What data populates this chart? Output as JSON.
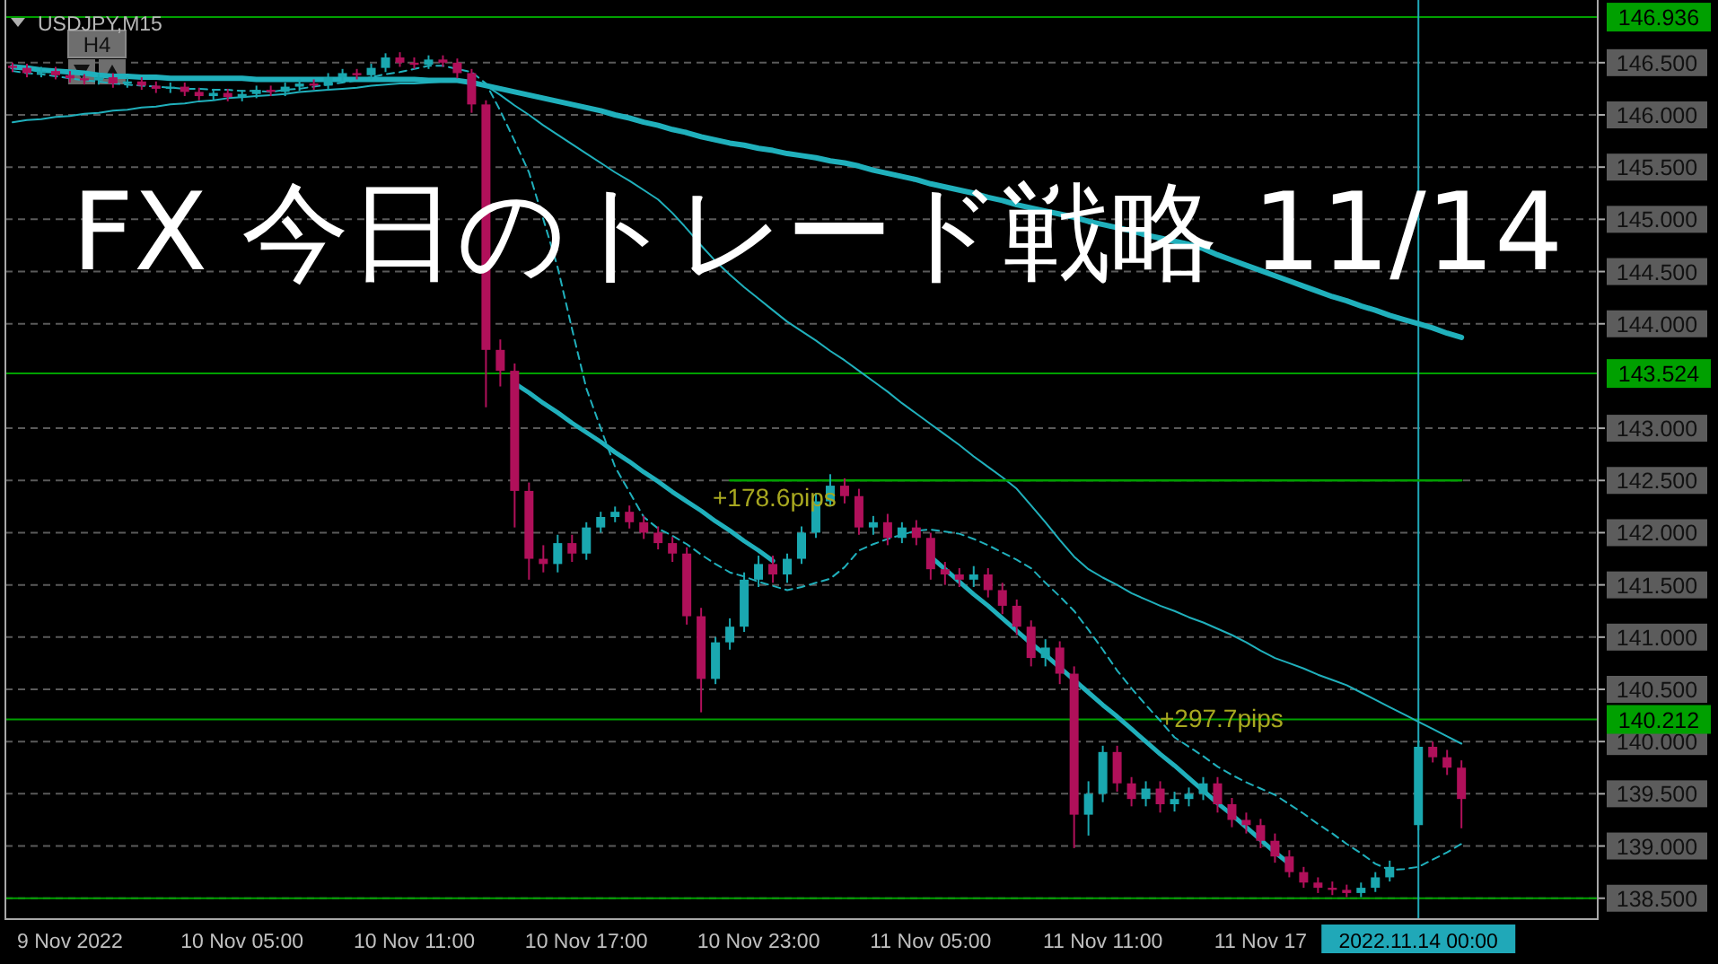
{
  "chart_data": {
    "type": "candlestick",
    "title": "FX 今日のトレード戦略 11/14",
    "subtitle": "USDJPY,M15",
    "annotations": [
      "H4",
      "+178.6pips",
      "+297.7pips"
    ],
    "categories": [
      null,
      null,
      null,
      null,
      "9 Nov 2022",
      null,
      null,
      null,
      null,
      null,
      null,
      null,
      null,
      null,
      null,
      null,
      "10 Nov 05:00",
      null,
      null,
      null,
      null,
      null,
      null,
      null,
      null,
      null,
      null,
      null,
      "10 Nov 11:00",
      null,
      null,
      null,
      null,
      null,
      null,
      null,
      null,
      null,
      null,
      null,
      "10 Nov 17:00",
      null,
      null,
      null,
      null,
      null,
      null,
      null,
      null,
      null,
      null,
      null,
      "10 Nov 23:00",
      null,
      null,
      null,
      null,
      null,
      null,
      null,
      null,
      null,
      null,
      null,
      "11 Nov 05:00",
      null,
      null,
      null,
      null,
      null,
      null,
      null,
      null,
      null,
      null,
      null,
      "11 Nov 11:00",
      null,
      null,
      null,
      null,
      null,
      null,
      null,
      null,
      null,
      null,
      "11 Nov 17",
      null,
      null,
      null,
      null,
      null,
      null,
      null,
      null,
      null,
      null,
      "2022.11.14 00:00",
      null,
      null,
      null,
      null,
      null,
      null,
      null,
      null,
      null,
      null,
      null,
      null
    ],
    "ylim": [
      138.3,
      147.1
    ],
    "yticks": [
      {
        "value": 138.5,
        "label": "138.500"
      },
      {
        "value": 139,
        "label": "139.000"
      },
      {
        "value": 139.5,
        "label": "139.500"
      },
      {
        "value": 140,
        "label": "140.000"
      },
      {
        "value": 140.5,
        "label": "140.500"
      },
      {
        "value": 141,
        "label": "141.000"
      },
      {
        "value": 141.5,
        "label": "141.500"
      },
      {
        "value": 142,
        "label": "142.000"
      },
      {
        "value": 142.5,
        "label": "142.500"
      },
      {
        "value": 143,
        "label": "143.000"
      },
      {
        "value": 144,
        "label": "144.000"
      },
      {
        "value": 144.5,
        "label": "144.500"
      },
      {
        "value": 145,
        "label": "145.000"
      },
      {
        "value": 145.5,
        "label": "145.500"
      },
      {
        "value": 146,
        "label": "146.000"
      },
      {
        "value": 146.5,
        "label": "146.500"
      }
    ],
    "grid": "y",
    "ref_lines": [
      {
        "axis": "y",
        "value": 146.936,
        "label": "146.936",
        "color": "#00a000"
      },
      {
        "axis": "y",
        "value": 143.524,
        "label": "143.524",
        "color": "#00a000"
      },
      {
        "axis": "y",
        "value": 140.212,
        "label": "140.212",
        "color": "#00a000"
      },
      {
        "axis": "y",
        "value": 138.5,
        "color": "#00a000"
      },
      {
        "axis": "x",
        "value": "2022.11.14 00:00",
        "color": "#20a8b8"
      }
    ],
    "series": [
      {
        "type": "line",
        "color": "#20b0bc",
        "values": [
          146.46,
          146.45,
          146.43,
          146.42,
          146.41,
          146.4,
          146.38,
          146.37,
          146.37,
          146.36,
          146.36,
          146.35,
          146.35,
          146.35,
          146.35,
          146.35,
          146.35,
          146.34,
          146.34,
          146.34,
          146.34,
          146.34,
          146.34,
          146.34,
          146.34,
          146.34,
          146.34,
          146.34,
          146.34,
          146.33,
          146.33,
          146.33,
          146.31,
          146.28,
          146.25,
          146.22,
          146.19,
          146.16,
          146.13,
          146.1,
          146.07,
          146.04,
          146.0,
          145.97,
          145.93,
          145.9,
          145.86,
          145.83,
          145.79,
          145.76,
          145.73,
          145.71,
          145.68,
          145.66,
          145.63,
          145.61,
          145.59,
          145.56,
          145.54,
          145.51,
          145.47,
          145.44,
          145.41,
          145.38,
          145.34,
          145.31,
          145.28,
          145.25,
          145.21,
          145.18,
          145.14,
          145.11,
          145.08,
          145.05,
          145.02,
          144.98,
          144.95,
          144.92,
          144.89,
          144.85,
          144.82,
          144.79,
          144.76,
          144.72,
          144.66,
          144.61,
          144.56,
          144.51,
          144.46,
          144.41,
          144.36,
          144.31,
          144.26,
          144.22,
          144.17,
          144.13,
          144.08,
          144.04,
          144.0,
          143.96,
          143.91,
          143.87,
          null,
          null,
          null,
          null,
          null,
          null,
          null,
          null,
          null
        ]
      },
      {
        "type": "line",
        "color": "#20b0bc",
        "values": [
          145.93,
          145.95,
          145.96,
          145.98,
          145.99,
          146.01,
          146.02,
          146.04,
          146.05,
          146.07,
          146.08,
          146.1,
          146.11,
          146.13,
          146.14,
          146.16,
          146.17,
          146.18,
          146.19,
          146.2,
          146.22,
          146.23,
          146.24,
          146.25,
          146.26,
          146.28,
          146.29,
          146.3,
          146.3,
          146.31,
          146.32,
          146.32,
          146.33,
          146.28,
          146.19,
          146.09,
          146.0,
          145.9,
          145.81,
          145.72,
          145.63,
          145.54,
          145.45,
          145.37,
          145.28,
          145.19,
          145.06,
          144.91,
          144.75,
          144.6,
          144.47,
          144.35,
          144.24,
          144.13,
          144.02,
          143.93,
          143.84,
          143.74,
          143.65,
          143.55,
          143.45,
          143.35,
          143.24,
          143.14,
          143.04,
          142.94,
          142.84,
          142.73,
          142.63,
          142.53,
          142.42,
          142.26,
          142.1,
          141.93,
          141.77,
          141.65,
          141.57,
          141.5,
          141.42,
          141.36,
          141.3,
          141.25,
          141.19,
          141.14,
          141.08,
          141.02,
          140.95,
          140.87,
          140.8,
          140.75,
          140.7,
          140.64,
          140.59,
          140.54,
          140.47,
          140.4,
          140.33,
          140.26,
          140.19,
          140.12,
          140.05,
          139.98,
          null,
          null,
          null,
          null,
          null,
          null,
          null,
          null,
          null
        ]
      },
      {
        "type": "line",
        "color": "#20b0bc",
        "line_style": "dashed",
        "values": [
          146.42,
          146.4,
          146.39,
          146.37,
          146.35,
          146.33,
          146.32,
          146.3,
          146.29,
          146.28,
          146.27,
          146.26,
          146.25,
          146.25,
          146.24,
          146.24,
          146.23,
          146.23,
          146.22,
          146.24,
          146.25,
          146.27,
          146.29,
          146.31,
          146.33,
          146.36,
          146.39,
          146.41,
          146.44,
          146.47,
          146.47,
          146.44,
          146.41,
          146.3,
          146.04,
          145.75,
          145.45,
          145.0,
          144.54,
          143.95,
          143.38,
          143.0,
          142.63,
          142.39,
          142.15,
          142.04,
          141.97,
          141.89,
          141.79,
          141.7,
          141.62,
          141.58,
          141.53,
          141.49,
          141.45,
          141.48,
          141.52,
          141.56,
          141.67,
          141.83,
          141.89,
          141.94,
          141.98,
          142.02,
          142.03,
          142.01,
          141.99,
          141.94,
          141.88,
          141.81,
          141.74,
          141.66,
          141.52,
          141.39,
          141.25,
          141.07,
          140.88,
          140.68,
          140.51,
          140.35,
          140.2,
          140.04,
          139.95,
          139.86,
          139.76,
          139.68,
          139.61,
          139.55,
          139.49,
          139.4,
          139.31,
          139.21,
          139.12,
          139.02,
          138.93,
          138.83,
          138.77,
          138.78,
          138.8,
          138.87,
          138.94,
          139.02,
          null,
          null,
          null,
          null,
          null,
          null,
          null,
          null,
          null
        ]
      },
      {
        "type": "line",
        "color": "#20b0bc",
        "values": [
          null,
          null,
          null,
          null,
          null,
          null,
          null,
          null,
          null,
          null,
          null,
          null,
          null,
          null,
          null,
          null,
          null,
          null,
          null,
          null,
          null,
          null,
          null,
          null,
          null,
          null,
          null,
          null,
          null,
          null,
          null,
          null,
          null,
          null,
          null,
          143.43,
          143.34,
          143.24,
          143.15,
          143.05,
          142.96,
          142.87,
          142.77,
          142.68,
          142.58,
          142.49,
          142.39,
          142.3,
          142.21,
          142.11,
          142.02,
          141.92,
          141.83,
          141.73,
          null,
          null,
          null,
          null,
          null,
          null,
          null,
          null,
          null,
          null,
          null,
          null,
          null,
          null,
          null,
          null,
          null,
          null,
          null,
          null,
          null,
          null,
          null,
          null,
          null,
          null,
          null,
          null,
          null,
          null,
          null,
          null,
          null,
          null,
          null,
          null,
          null,
          null,
          null,
          null,
          null,
          null,
          null,
          null,
          null,
          null,
          null,
          null,
          null,
          null,
          null,
          null,
          null,
          null,
          null,
          null,
          null
        ]
      },
      {
        "type": "line",
        "color": "#20b0bc",
        "values": [
          null,
          null,
          null,
          null,
          null,
          null,
          null,
          null,
          null,
          null,
          null,
          null,
          null,
          null,
          null,
          null,
          null,
          null,
          null,
          null,
          null,
          null,
          null,
          null,
          null,
          null,
          null,
          null,
          null,
          null,
          null,
          null,
          null,
          null,
          null,
          null,
          null,
          null,
          null,
          null,
          null,
          null,
          null,
          null,
          null,
          null,
          null,
          null,
          null,
          null,
          null,
          null,
          null,
          null,
          null,
          null,
          null,
          null,
          null,
          null,
          null,
          null,
          null,
          null,
          141.77,
          141.65,
          141.53,
          141.41,
          141.3,
          141.18,
          141.06,
          140.94,
          140.83,
          140.71,
          140.59,
          140.47,
          140.35,
          140.24,
          140.12,
          140.0,
          139.88,
          139.77,
          139.65,
          139.53,
          139.41,
          139.3,
          139.18,
          139.06,
          138.94,
          138.83,
          null,
          null,
          null,
          null,
          null,
          null,
          null,
          null,
          null,
          null,
          null,
          null,
          null,
          null,
          null,
          null,
          null,
          null,
          null,
          null,
          null
        ]
      },
      {
        "type": "line",
        "color": "#00a000",
        "values": [
          null,
          null,
          null,
          null,
          null,
          null,
          null,
          null,
          null,
          null,
          null,
          null,
          null,
          null,
          null,
          null,
          null,
          null,
          null,
          null,
          null,
          null,
          null,
          null,
          null,
          null,
          null,
          null,
          null,
          null,
          null,
          null,
          null,
          null,
          null,
          null,
          null,
          null,
          null,
          null,
          null,
          null,
          null,
          null,
          null,
          null,
          null,
          null,
          null,
          null,
          142.5,
          142.5,
          142.5,
          142.5,
          142.5,
          142.5,
          142.5,
          142.5,
          142.5,
          142.5,
          142.5,
          142.5,
          142.5,
          142.5,
          142.5,
          142.5,
          142.5,
          142.5,
          142.5,
          142.5,
          142.5,
          142.5,
          142.5,
          142.5,
          142.5,
          142.5,
          142.5,
          142.5,
          142.5,
          142.5,
          142.5,
          142.5,
          142.5,
          142.5,
          142.5,
          142.5,
          142.5,
          142.5,
          142.5,
          142.5,
          142.5,
          142.5,
          142.5,
          142.5,
          142.5,
          142.5,
          142.5,
          142.5,
          142.5,
          142.5,
          142.5,
          142.5,
          null,
          null,
          null,
          null,
          null,
          null,
          null,
          null,
          null
        ]
      },
      {
        "colors": [
          "#b0105a",
          "#b0105a",
          "#1aa8b0",
          "#b0105a",
          "#b0105a",
          "#b0105a",
          "#1aa8b0",
          "#b0105a",
          "#1aa8b0",
          "#b0105a",
          "#b0105a",
          "#1aa8b0",
          "#b0105a",
          "#b0105a",
          "#1aa8b0",
          "#b0105a",
          "#1aa8b0",
          "#1aa8b0",
          "#b0105a",
          "#1aa8b0",
          "#1aa8b0",
          "#b0105a",
          "#1aa8b0",
          "#1aa8b0",
          "#b0105a",
          "#1aa8b0",
          "#1aa8b0",
          "#b0105a",
          "#b0105a",
          "#1aa8b0",
          "#b0105a",
          "#b0105a",
          "#b0105a",
          "#b0105a",
          "#b0105a",
          "#b0105a",
          "#b0105a",
          "#b0105a",
          "#1aa8b0",
          "#b0105a",
          "#1aa8b0",
          "#1aa8b0",
          "#1aa8b0",
          "#b0105a",
          "#b0105a",
          "#b0105a",
          "#b0105a",
          "#b0105a",
          "#b0105a",
          "#1aa8b0",
          "#1aa8b0",
          "#1aa8b0",
          "#1aa8b0",
          "#b0105a",
          "#1aa8b0",
          "#1aa8b0",
          "#1aa8b0",
          "#1aa8b0",
          "#b0105a",
          "#b0105a",
          "#1aa8b0",
          "#b0105a",
          "#1aa8b0",
          "#b0105a",
          "#b0105a",
          "#b0105a",
          "#b0105a",
          "#1aa8b0",
          "#b0105a",
          "#b0105a",
          "#b0105a",
          "#b0105a",
          "#1aa8b0",
          "#b0105a",
          "#b0105a",
          "#1aa8b0",
          "#1aa8b0",
          "#b0105a",
          "#b0105a",
          "#1aa8b0",
          "#b0105a",
          "#1aa8b0",
          "#1aa8b0",
          "#1aa8b0",
          "#b0105a",
          "#b0105a",
          "#b0105a",
          "#b0105a",
          "#b0105a",
          "#b0105a",
          "#b0105a",
          "#b0105a",
          "#b0105a",
          "#b0105a",
          "#1aa8b0",
          "#1aa8b0",
          "#1aa8b0",
          null,
          "#1aa8b0",
          "#b0105a",
          "#b0105a",
          "#b0105a",
          null,
          null,
          null,
          null,
          null,
          null,
          null,
          null,
          null
        ],
        "ohlc": [
          [
            146.47,
            146.5,
            146.41,
            146.45
          ],
          [
            146.45,
            146.49,
            146.36,
            146.4
          ],
          [
            146.4,
            146.46,
            146.36,
            146.42
          ],
          [
            146.42,
            146.46,
            146.34,
            146.38
          ],
          [
            146.38,
            146.42,
            146.31,
            146.35
          ],
          [
            146.35,
            146.39,
            146.29,
            146.33
          ],
          [
            146.33,
            146.4,
            146.29,
            146.36
          ],
          [
            146.36,
            146.4,
            146.26,
            146.3
          ],
          [
            146.3,
            146.36,
            146.26,
            146.32
          ],
          [
            146.32,
            146.36,
            146.24,
            146.28
          ],
          [
            146.28,
            146.32,
            146.21,
            146.25
          ],
          [
            146.25,
            146.31,
            146.21,
            146.27
          ],
          [
            146.27,
            146.31,
            146.18,
            146.22
          ],
          [
            146.22,
            146.26,
            146.14,
            146.18
          ],
          [
            146.18,
            146.25,
            146.14,
            146.21
          ],
          [
            146.21,
            146.25,
            146.13,
            146.17
          ],
          [
            146.17,
            146.24,
            146.13,
            146.2
          ],
          [
            146.2,
            146.28,
            146.16,
            146.24
          ],
          [
            146.24,
            146.28,
            146.18,
            146.22
          ],
          [
            146.22,
            146.31,
            146.18,
            146.27
          ],
          [
            146.27,
            146.34,
            146.23,
            146.3
          ],
          [
            146.3,
            146.34,
            146.24,
            146.28
          ],
          [
            146.28,
            146.4,
            146.24,
            146.36
          ],
          [
            146.36,
            146.44,
            146.32,
            146.4
          ],
          [
            146.4,
            146.44,
            146.34,
            146.38
          ],
          [
            146.38,
            146.49,
            146.34,
            146.45
          ],
          [
            146.45,
            146.59,
            146.41,
            146.55
          ],
          [
            146.55,
            146.6,
            146.46,
            146.5
          ],
          [
            146.5,
            146.55,
            146.44,
            146.48
          ],
          [
            146.48,
            146.57,
            146.44,
            146.53
          ],
          [
            146.53,
            146.57,
            146.46,
            146.5
          ],
          [
            146.5,
            146.54,
            146.35,
            146.4
          ],
          [
            146.4,
            146.44,
            146.02,
            146.1
          ],
          [
            146.1,
            146.14,
            143.2,
            143.75
          ],
          [
            143.75,
            143.85,
            143.4,
            143.55
          ],
          [
            143.55,
            143.62,
            142.05,
            142.4
          ],
          [
            142.4,
            142.48,
            141.55,
            141.75
          ],
          [
            141.75,
            141.88,
            141.62,
            141.7
          ],
          [
            141.7,
            141.98,
            141.62,
            141.9
          ],
          [
            141.9,
            141.98,
            141.72,
            141.8
          ],
          [
            141.8,
            142.1,
            141.74,
            142.05
          ],
          [
            142.05,
            142.2,
            142.0,
            142.15
          ],
          [
            142.15,
            142.25,
            142.1,
            142.2
          ],
          [
            142.2,
            142.26,
            142.04,
            142.1
          ],
          [
            142.1,
            142.16,
            141.94,
            142.0
          ],
          [
            142.0,
            142.06,
            141.84,
            141.9
          ],
          [
            141.9,
            141.96,
            141.72,
            141.8
          ],
          [
            141.8,
            141.86,
            141.12,
            141.2
          ],
          [
            141.2,
            141.28,
            140.28,
            140.6
          ],
          [
            140.6,
            141.0,
            140.55,
            140.95
          ],
          [
            140.95,
            141.18,
            140.88,
            141.1
          ],
          [
            141.1,
            141.62,
            141.05,
            141.55
          ],
          [
            141.55,
            141.78,
            141.48,
            141.7
          ],
          [
            141.7,
            141.78,
            141.52,
            141.6
          ],
          [
            141.6,
            141.8,
            141.52,
            141.75
          ],
          [
            141.75,
            142.06,
            141.7,
            142.0
          ],
          [
            142.0,
            142.38,
            141.95,
            142.3
          ],
          [
            142.3,
            142.56,
            142.25,
            142.45
          ],
          [
            142.45,
            142.52,
            142.28,
            142.35
          ],
          [
            142.35,
            142.42,
            141.98,
            142.05
          ],
          [
            142.05,
            142.16,
            141.98,
            142.1
          ],
          [
            142.1,
            142.18,
            141.88,
            141.95
          ],
          [
            141.95,
            142.1,
            141.9,
            142.05
          ],
          [
            142.05,
            142.12,
            141.88,
            141.95
          ],
          [
            141.95,
            142.0,
            141.55,
            141.65
          ],
          [
            141.65,
            141.72,
            141.5,
            141.6
          ],
          [
            141.6,
            141.66,
            141.48,
            141.55
          ],
          [
            141.55,
            141.68,
            141.48,
            141.6
          ],
          [
            141.6,
            141.66,
            141.38,
            141.45
          ],
          [
            141.45,
            141.52,
            141.22,
            141.3
          ],
          [
            141.3,
            141.36,
            141.02,
            141.1
          ],
          [
            141.1,
            141.16,
            140.72,
            140.8
          ],
          [
            140.8,
            140.98,
            140.72,
            140.9
          ],
          [
            140.9,
            140.96,
            140.55,
            140.65
          ],
          [
            140.65,
            140.72,
            138.98,
            139.3
          ],
          [
            139.3,
            139.62,
            139.1,
            139.5
          ],
          [
            139.5,
            139.96,
            139.42,
            139.9
          ],
          [
            139.9,
            139.96,
            139.52,
            139.6
          ],
          [
            139.6,
            139.66,
            139.38,
            139.45
          ],
          [
            139.45,
            139.62,
            139.38,
            139.55
          ],
          [
            139.55,
            139.62,
            139.32,
            139.4
          ],
          [
            139.4,
            139.52,
            139.33,
            139.45
          ],
          [
            139.45,
            139.56,
            139.38,
            139.5
          ],
          [
            139.5,
            139.66,
            139.44,
            139.6
          ],
          [
            139.6,
            139.66,
            139.32,
            139.4
          ],
          [
            139.4,
            139.46,
            139.18,
            139.25
          ],
          [
            139.25,
            139.32,
            139.12,
            139.2
          ],
          [
            139.2,
            139.26,
            138.98,
            139.05
          ],
          [
            139.05,
            139.12,
            138.84,
            138.9
          ],
          [
            138.9,
            138.96,
            138.7,
            138.75
          ],
          [
            138.75,
            138.8,
            138.6,
            138.65
          ],
          [
            138.65,
            138.7,
            138.55,
            138.6
          ],
          [
            138.6,
            138.66,
            138.53,
            138.58
          ],
          [
            138.58,
            138.63,
            138.51,
            138.55
          ],
          [
            138.55,
            138.65,
            138.51,
            138.6
          ],
          [
            138.6,
            138.75,
            138.56,
            138.7
          ],
          [
            138.7,
            138.86,
            138.66,
            138.8
          ],
          null,
          [
            139.2,
            140.0,
            139.15,
            139.95
          ],
          [
            139.95,
            140.0,
            139.8,
            139.85
          ],
          [
            139.85,
            139.92,
            139.68,
            139.75
          ],
          [
            139.75,
            139.82,
            139.17,
            139.45
          ],
          null,
          null,
          null,
          null,
          null,
          null,
          null,
          null,
          null
        ]
      }
    ]
  }
}
